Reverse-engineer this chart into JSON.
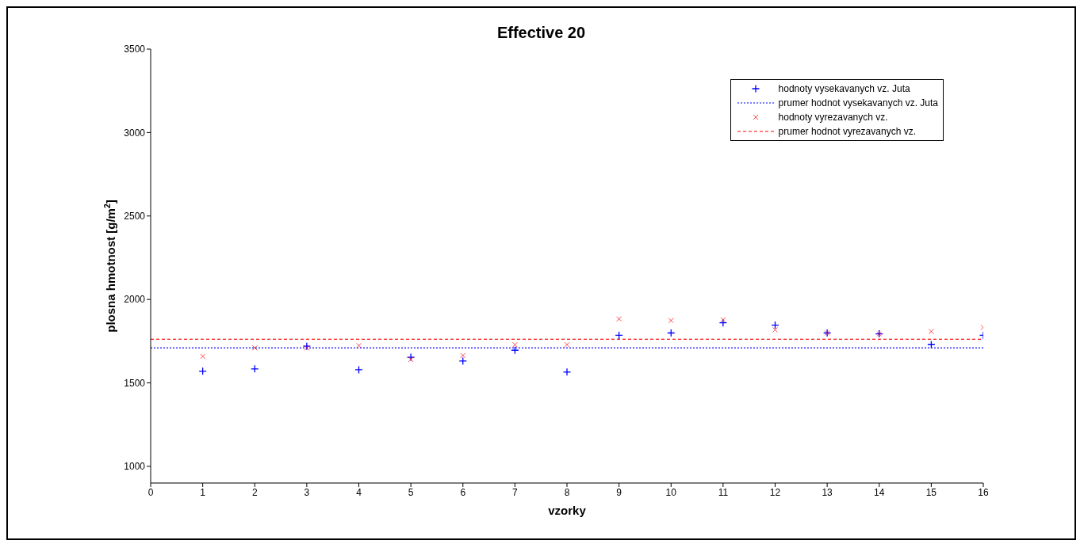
{
  "chart_data": {
    "type": "scatter",
    "title": "Effective 20",
    "xlabel": "vzorky",
    "ylabel": "plosna hmotnost [g/m$^{2}$]",
    "xlim": [
      0,
      16
    ],
    "xticks": [
      0,
      1,
      2,
      3,
      4,
      5,
      6,
      7,
      8,
      9,
      10,
      11,
      12,
      13,
      14,
      15,
      16
    ],
    "ylim": [
      900,
      3500
    ],
    "yticks": [
      1000,
      1500,
      2000,
      2500,
      3000,
      3500
    ],
    "grid": false,
    "legend": "top right",
    "series": [
      {
        "name": "hodnoty vysekavanych vz. Juta",
        "marker": "cross",
        "color": "#0000ff",
        "x": [
          1,
          2,
          3,
          4,
          5,
          6,
          7,
          8,
          9,
          10,
          11,
          12,
          13,
          14,
          15,
          16
        ],
        "values": [
          1570,
          1584,
          1720,
          1579,
          1654,
          1631,
          1696,
          1565,
          1785,
          1799,
          1860,
          1846,
          1799,
          1794,
          1729,
          1785
        ]
      },
      {
        "name": "prumer hodnot vysekavanych vz. Juta",
        "type": "line",
        "color": "#0000ff",
        "line_style": "dotted",
        "marker": "none",
        "x": [
          0,
          16
        ],
        "values": [
          1710,
          1710
        ]
      },
      {
        "name": "hodnoty vyrezavanych vz.",
        "marker": "cross",
        "color": "#ff0000",
        "x": [
          1,
          2,
          3,
          4,
          5,
          6,
          7,
          8,
          9,
          10,
          11,
          12,
          13,
          14,
          15,
          16
        ],
        "values": [
          1659,
          1710,
          1710,
          1724,
          1640,
          1664,
          1729,
          1729,
          1883,
          1874,
          1878,
          1818,
          1799,
          1794,
          1808,
          1832
        ]
      },
      {
        "name": "prumer hodnot vyrezavanych vz.",
        "type": "line",
        "color": "#ff0000",
        "line_style": "dashed",
        "marker": "none",
        "x": [
          0,
          16
        ],
        "values": [
          1762,
          1762
        ]
      }
    ]
  }
}
